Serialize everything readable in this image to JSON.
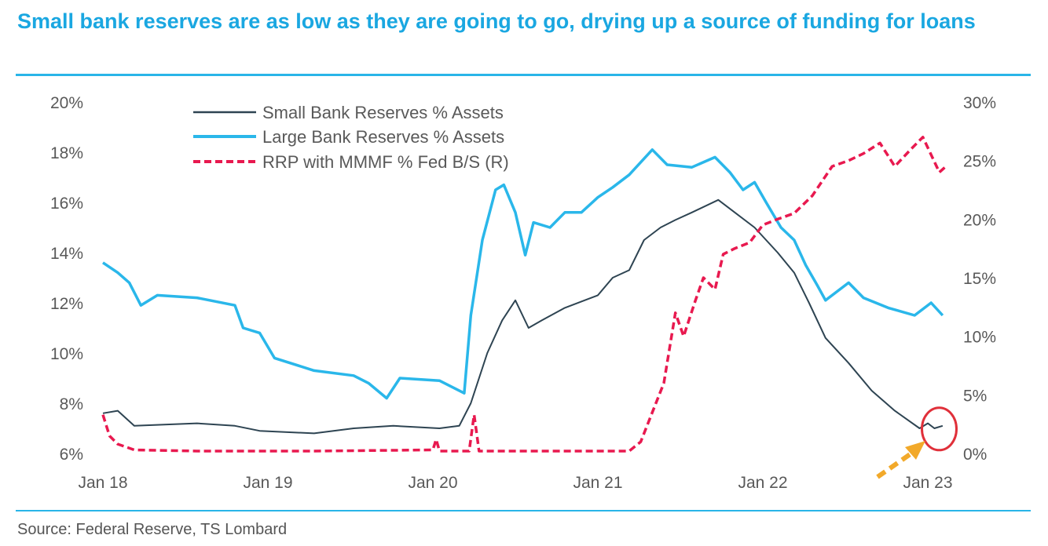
{
  "title": "Small bank reserves are as low as they are going to go, drying up a source of funding for loans",
  "source": "Source: Federal Reserve, TS Lombard",
  "colors": {
    "title": "#1AA7E1",
    "small": "#2E4452",
    "large": "#2AB7EA",
    "rrp": "#E8194F",
    "annotation_circle": "#E0303A",
    "annotation_arrow": "#F2A92A"
  },
  "chart_data": {
    "type": "line",
    "title": "Small bank reserves are as low as they are going to go, drying up a source of funding for loans",
    "xlabel": "",
    "ylabel": "",
    "y2label": "",
    "xlim": [
      2018.0,
      2023.15
    ],
    "ylim": [
      6,
      20
    ],
    "y2lim": [
      0,
      30
    ],
    "x_ticks": [
      {
        "v": 2018,
        "label": "Jan 18"
      },
      {
        "v": 2019,
        "label": "Jan 19"
      },
      {
        "v": 2020,
        "label": "Jan 20"
      },
      {
        "v": 2021,
        "label": "Jan 21"
      },
      {
        "v": 2022,
        "label": "Jan 22"
      },
      {
        "v": 2023,
        "label": "Jan 23"
      }
    ],
    "y_ticks": [
      "6%",
      "8%",
      "10%",
      "12%",
      "14%",
      "16%",
      "18%",
      "20%"
    ],
    "y_tick_values": [
      6,
      8,
      10,
      12,
      14,
      16,
      18,
      20
    ],
    "y2_ticks": [
      "0%",
      "5%",
      "10%",
      "15%",
      "20%",
      "25%",
      "30%"
    ],
    "y2_tick_values": [
      0,
      5,
      10,
      15,
      20,
      25,
      30
    ],
    "grid": false,
    "legend_position": "top-left",
    "series": [
      {
        "name": "Small Bank Reserves % Assets",
        "axis": "left",
        "style": "solid-dark",
        "x": [
          2018.0,
          2018.09,
          2018.19,
          2018.57,
          2018.8,
          2018.95,
          2019.28,
          2019.52,
          2019.76,
          2020.04,
          2020.16,
          2020.23,
          2020.33,
          2020.42,
          2020.5,
          2020.58,
          2020.66,
          2020.8,
          2021.0,
          2021.09,
          2021.19,
          2021.28,
          2021.38,
          2021.47,
          2021.57,
          2021.73,
          2021.83,
          2021.95,
          2022.09,
          2022.19,
          2022.28,
          2022.38,
          2022.52,
          2022.66,
          2022.8,
          2022.95,
          2023.0,
          2023.04,
          2023.09
        ],
        "y": [
          7.6,
          7.7,
          7.1,
          7.2,
          7.1,
          6.9,
          6.8,
          7.0,
          7.1,
          7.0,
          7.1,
          8.0,
          10.0,
          11.3,
          12.1,
          11.0,
          11.3,
          11.8,
          12.3,
          13.0,
          13.3,
          14.5,
          15.0,
          15.3,
          15.6,
          16.1,
          15.6,
          15.0,
          14.0,
          13.2,
          12.0,
          10.6,
          9.6,
          8.5,
          7.7,
          7.0,
          7.2,
          7.0,
          7.1
        ]
      },
      {
        "name": "Large Bank Reserves % Assets",
        "axis": "left",
        "style": "solid-light",
        "x": [
          2018.0,
          2018.09,
          2018.16,
          2018.23,
          2018.33,
          2018.57,
          2018.8,
          2018.85,
          2018.95,
          2019.04,
          2019.28,
          2019.52,
          2019.61,
          2019.72,
          2019.8,
          2020.04,
          2020.19,
          2020.23,
          2020.3,
          2020.38,
          2020.43,
          2020.5,
          2020.56,
          2020.61,
          2020.71,
          2020.8,
          2020.9,
          2021.0,
          2021.09,
          2021.19,
          2021.33,
          2021.42,
          2021.57,
          2021.71,
          2021.8,
          2021.88,
          2021.95,
          2022.02,
          2022.11,
          2022.19,
          2022.26,
          2022.33,
          2022.38,
          2022.52,
          2022.61,
          2022.76,
          2022.92,
          2023.02,
          2023.09
        ],
        "y": [
          13.6,
          13.2,
          12.8,
          11.9,
          12.3,
          12.2,
          11.9,
          11.0,
          10.8,
          9.8,
          9.3,
          9.1,
          8.8,
          8.2,
          9.0,
          8.9,
          8.4,
          11.5,
          14.5,
          16.5,
          16.7,
          15.6,
          13.9,
          15.2,
          15.0,
          15.6,
          15.6,
          16.2,
          16.6,
          17.1,
          18.1,
          17.5,
          17.4,
          17.8,
          17.2,
          16.5,
          16.8,
          16.0,
          15.0,
          14.5,
          13.5,
          12.7,
          12.1,
          12.8,
          12.2,
          11.8,
          11.5,
          12.0,
          11.5
        ]
      },
      {
        "name": "RRP with MMMF % Fed B/S (R)",
        "axis": "right",
        "style": "dashed",
        "x": [
          2018.0,
          2018.04,
          2018.09,
          2018.19,
          2018.57,
          2019.28,
          2020.0,
          2020.02,
          2020.04,
          2020.22,
          2020.25,
          2020.28,
          2021.19,
          2021.26,
          2021.33,
          2021.4,
          2021.47,
          2021.52,
          2021.59,
          2021.64,
          2021.71,
          2021.76,
          2021.83,
          2021.92,
          2022.0,
          2022.09,
          2022.19,
          2022.3,
          2022.42,
          2022.52,
          2022.61,
          2022.71,
          2022.8,
          2022.9,
          2022.97,
          2023.07,
          2023.11
        ],
        "y": [
          3.3,
          1.5,
          0.8,
          0.3,
          0.2,
          0.2,
          0.3,
          1.2,
          0.2,
          0.2,
          3.3,
          0.2,
          0.2,
          1.0,
          3.5,
          6.0,
          12.0,
          10.0,
          13.0,
          15.0,
          14.0,
          17.0,
          17.5,
          18.0,
          19.5,
          20.0,
          20.5,
          22.0,
          24.5,
          25.0,
          25.6,
          26.5,
          24.5,
          26.0,
          27.0,
          24.0,
          24.5
        ]
      }
    ],
    "annotations": [
      {
        "type": "circle",
        "at_x": 2023.05,
        "at_y": 7.1
      },
      {
        "type": "dashed-arrow",
        "points_to_x": 2023.0,
        "points_to_y": 6.6
      }
    ]
  }
}
